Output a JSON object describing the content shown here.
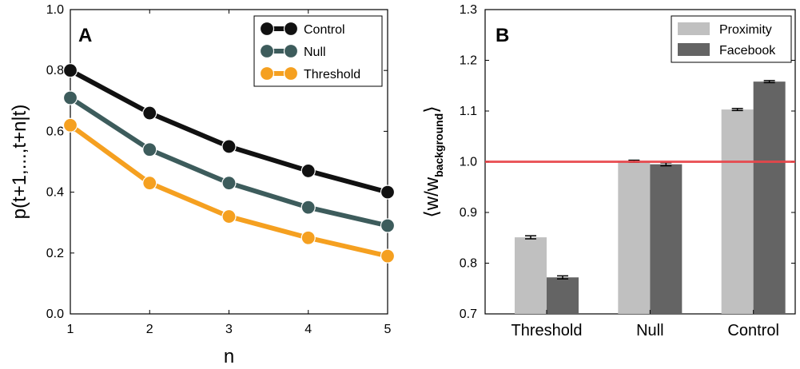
{
  "chart_data": [
    {
      "type": "line",
      "panel_label": "A",
      "xlabel": "n",
      "ylabel": "p(t+1,...,t+n|t)",
      "x": [
        1,
        2,
        3,
        4,
        5
      ],
      "xticks": [
        "1",
        "2",
        "3",
        "4",
        "5"
      ],
      "xlim": [
        1,
        5
      ],
      "ylim": [
        0.0,
        1.0
      ],
      "yticks": [
        "0.0",
        "0.2",
        "0.4",
        "0.6",
        "0.8",
        "1.0"
      ],
      "legend_position": "top-right",
      "series": [
        {
          "name": "Control",
          "color": "#111111",
          "values": [
            0.8,
            0.66,
            0.55,
            0.47,
            0.4
          ]
        },
        {
          "name": "Null",
          "color": "#3d5c5c",
          "values": [
            0.71,
            0.54,
            0.43,
            0.35,
            0.29
          ]
        },
        {
          "name": "Threshold",
          "color": "#f5a020",
          "values": [
            0.62,
            0.43,
            0.32,
            0.25,
            0.19
          ]
        }
      ]
    },
    {
      "type": "bar",
      "panel_label": "B",
      "ylabel": "⟨w/w",
      "ylabel_subscript": "background",
      "ylabel_close": "⟩",
      "categories": [
        "Threshold",
        "Null",
        "Control"
      ],
      "ylim": [
        0.7,
        1.3
      ],
      "yticks": [
        "0.7",
        "0.8",
        "0.9",
        "1.0",
        "1.1",
        "1.2",
        "1.3"
      ],
      "reference_line": {
        "value": 1.0,
        "color": "#e8454a"
      },
      "legend_position": "top-right",
      "series": [
        {
          "name": "Proximity",
          "color": "#c0c0c0",
          "values": [
            0.851,
            1.001,
            1.103
          ],
          "errors": [
            0.003,
            0.002,
            0.002
          ]
        },
        {
          "name": "Facebook",
          "color": "#646464",
          "values": [
            0.772,
            0.995,
            1.158
          ],
          "errors": [
            0.003,
            0.003,
            0.002
          ]
        }
      ]
    }
  ]
}
